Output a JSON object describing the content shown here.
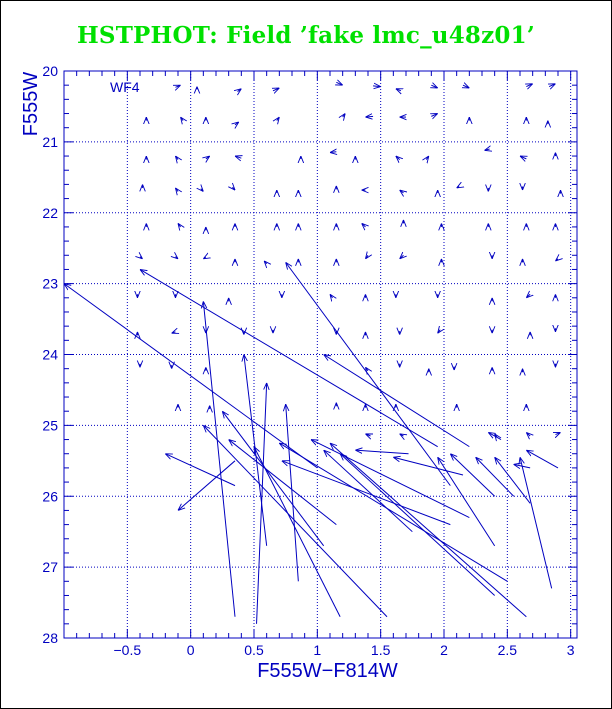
{
  "title": "HSTPHOT: Field ’fake lmc_u48z01’",
  "colors": {
    "title": "#00e000",
    "axes": "#0000c0"
  },
  "chart_data": {
    "type": "vector-field",
    "panel_label": "WF4",
    "xlabel": "F555W−F814W",
    "ylabel": "F555W",
    "xlim": [
      -1.0,
      3.05
    ],
    "ylim": [
      28,
      20
    ],
    "y_inverted": true,
    "grid": true,
    "x_ticks": [
      {
        "v": -0.5,
        "label": "−0.5"
      },
      {
        "v": 0,
        "label": "0"
      },
      {
        "v": 0.5,
        "label": "0.5"
      },
      {
        "v": 1,
        "label": "1"
      },
      {
        "v": 1.5,
        "label": "1.5"
      },
      {
        "v": 2,
        "label": "2"
      },
      {
        "v": 2.5,
        "label": "2.5"
      },
      {
        "v": 3,
        "label": "3"
      }
    ],
    "y_ticks": [
      {
        "v": 20,
        "label": "20"
      },
      {
        "v": 21,
        "label": "21"
      },
      {
        "v": 22,
        "label": "22"
      },
      {
        "v": 23,
        "label": "23"
      },
      {
        "v": 24,
        "label": "24"
      },
      {
        "v": 25,
        "label": "25"
      },
      {
        "v": 26,
        "label": "26"
      },
      {
        "v": 27,
        "label": "27"
      },
      {
        "v": 28,
        "label": "28"
      }
    ],
    "x_grid": [
      -0.5,
      0,
      0.5,
      1,
      1.5,
      2,
      2.5,
      3
    ],
    "y_grid": [
      21,
      22,
      23,
      24,
      25,
      26,
      27
    ],
    "vectors": [
      [
        -0.08,
        20.2,
        -0.12,
        20.23
      ],
      [
        0.05,
        20.22,
        0.05,
        20.26
      ],
      [
        0.4,
        20.25,
        0.37,
        20.29
      ],
      [
        0.7,
        20.24,
        0.65,
        20.28
      ],
      [
        1.2,
        20.2,
        1.15,
        20.16
      ],
      [
        1.5,
        20.22,
        1.44,
        20.21
      ],
      [
        1.62,
        20.25,
        1.66,
        20.28
      ],
      [
        1.95,
        20.24,
        1.9,
        20.2
      ],
      [
        2.2,
        20.24,
        2.15,
        20.2
      ],
      [
        2.7,
        20.18,
        2.65,
        20.22
      ],
      [
        2.88,
        20.18,
        2.83,
        20.22
      ],
      [
        -0.35,
        20.65,
        -0.35,
        20.7
      ],
      [
        -0.08,
        20.65,
        -0.06,
        20.7
      ],
      [
        0.12,
        20.65,
        0.12,
        20.7
      ],
      [
        0.38,
        20.72,
        0.35,
        20.76
      ],
      [
        0.7,
        20.65,
        0.68,
        20.7
      ],
      [
        1.22,
        20.6,
        1.2,
        20.65
      ],
      [
        1.38,
        20.65,
        1.44,
        20.64
      ],
      [
        1.65,
        20.65,
        1.7,
        20.65
      ],
      [
        1.95,
        20.6,
        1.9,
        20.64
      ],
      [
        2.2,
        20.65,
        2.2,
        20.7
      ],
      [
        2.65,
        20.65,
        2.65,
        20.7
      ],
      [
        2.82,
        20.7,
        2.82,
        20.75
      ],
      [
        -0.35,
        21.2,
        -0.35,
        21.25
      ],
      [
        -0.12,
        21.2,
        -0.1,
        21.25
      ],
      [
        0.15,
        21.2,
        0.12,
        21.24
      ],
      [
        0.35,
        21.2,
        0.4,
        21.23
      ],
      [
        0.87,
        21.2,
        0.87,
        21.24
      ],
      [
        1.1,
        21.15,
        1.15,
        21.14
      ],
      [
        1.3,
        21.2,
        1.3,
        21.25
      ],
      [
        1.62,
        21.2,
        1.65,
        21.25
      ],
      [
        1.88,
        21.2,
        1.86,
        21.25
      ],
      [
        2.32,
        21.12,
        2.36,
        21.1
      ],
      [
        2.6,
        21.2,
        2.65,
        21.24
      ],
      [
        2.88,
        21.15,
        2.88,
        21.2
      ],
      [
        -0.38,
        21.6,
        -0.38,
        21.65
      ],
      [
        -0.12,
        21.65,
        -0.1,
        21.7
      ],
      [
        0.1,
        21.7,
        0.08,
        21.66
      ],
      [
        0.35,
        21.68,
        0.33,
        21.64
      ],
      [
        0.68,
        21.68,
        0.68,
        21.72
      ],
      [
        0.85,
        21.68,
        0.85,
        21.72
      ],
      [
        1.15,
        21.62,
        1.15,
        21.67
      ],
      [
        1.35,
        21.68,
        1.38,
        21.68
      ],
      [
        1.65,
        21.68,
        1.68,
        21.72
      ],
      [
        1.95,
        21.68,
        1.95,
        21.72
      ],
      [
        2.1,
        21.65,
        2.12,
        21.63
      ],
      [
        2.35,
        21.7,
        2.35,
        21.65
      ],
      [
        2.62,
        21.68,
        2.62,
        21.63
      ],
      [
        2.92,
        21.68,
        2.92,
        21.73
      ],
      [
        -0.35,
        22.15,
        -0.35,
        22.2
      ],
      [
        -0.1,
        22.15,
        -0.08,
        22.2
      ],
      [
        0.12,
        22.2,
        0.12,
        22.25
      ],
      [
        0.35,
        22.15,
        0.35,
        22.2
      ],
      [
        0.68,
        22.15,
        0.68,
        22.2
      ],
      [
        0.85,
        22.15,
        0.85,
        22.2
      ],
      [
        1.15,
        22.15,
        1.15,
        22.2
      ],
      [
        1.35,
        22.15,
        1.38,
        22.2
      ],
      [
        1.68,
        22.1,
        1.68,
        22.15
      ],
      [
        1.98,
        22.15,
        1.98,
        22.2
      ],
      [
        2.35,
        22.15,
        2.35,
        22.2
      ],
      [
        2.65,
        22.15,
        2.65,
        22.2
      ],
      [
        2.88,
        22.15,
        2.88,
        22.2
      ],
      [
        -0.38,
        22.65,
        -0.4,
        22.62
      ],
      [
        -0.1,
        22.65,
        -0.12,
        22.62
      ],
      [
        0.1,
        22.65,
        0.12,
        22.63
      ],
      [
        0.35,
        22.65,
        0.35,
        22.7
      ],
      [
        0.58,
        22.68,
        0.6,
        22.72
      ],
      [
        0.85,
        22.65,
        0.85,
        22.7
      ],
      [
        1.15,
        22.65,
        1.15,
        22.7
      ],
      [
        1.38,
        22.65,
        1.4,
        22.6
      ],
      [
        1.65,
        22.65,
        1.68,
        22.6
      ],
      [
        1.98,
        22.65,
        1.98,
        22.7
      ],
      [
        2.38,
        22.65,
        2.38,
        22.6
      ],
      [
        2.62,
        22.65,
        2.62,
        22.7
      ],
      [
        2.88,
        22.68,
        2.9,
        22.65
      ],
      [
        -0.42,
        23.2,
        -0.42,
        23.15
      ],
      [
        -0.12,
        23.2,
        -0.12,
        23.15
      ],
      [
        0.3,
        23.2,
        0.3,
        23.25
      ],
      [
        0.72,
        23.2,
        0.72,
        23.15
      ],
      [
        1.1,
        23.15,
        1.12,
        23.2
      ],
      [
        1.38,
        23.15,
        1.38,
        23.2
      ],
      [
        1.62,
        23.2,
        1.62,
        23.15
      ],
      [
        1.95,
        23.2,
        1.95,
        23.15
      ],
      [
        2.38,
        23.2,
        2.38,
        23.25
      ],
      [
        2.65,
        23.2,
        2.68,
        23.15
      ],
      [
        2.88,
        23.15,
        2.88,
        23.2
      ],
      [
        -0.42,
        23.68,
        -0.42,
        23.73
      ],
      [
        -0.15,
        23.7,
        -0.12,
        23.68
      ],
      [
        0.12,
        23.7,
        0.12,
        23.65
      ],
      [
        0.42,
        23.72,
        0.42,
        23.68
      ],
      [
        0.65,
        23.7,
        0.65,
        23.65
      ],
      [
        1.15,
        23.72,
        1.15,
        23.67
      ],
      [
        1.38,
        23.68,
        1.38,
        23.73
      ],
      [
        1.65,
        23.72,
        1.65,
        23.67
      ],
      [
        1.95,
        23.7,
        1.97,
        23.65
      ],
      [
        2.38,
        23.7,
        2.38,
        23.65
      ],
      [
        2.68,
        23.68,
        2.68,
        23.73
      ],
      [
        2.88,
        23.68,
        2.88,
        23.63
      ],
      [
        -0.4,
        24.18,
        -0.4,
        24.13
      ],
      [
        -0.15,
        24.2,
        -0.15,
        24.15
      ],
      [
        0.12,
        24.18,
        0.12,
        24.23
      ],
      [
        1.38,
        24.18,
        1.4,
        24.23
      ],
      [
        1.65,
        24.18,
        1.65,
        24.13
      ],
      [
        1.88,
        24.2,
        1.88,
        24.25
      ],
      [
        2.08,
        24.22,
        2.08,
        24.17
      ],
      [
        2.38,
        24.18,
        2.38,
        24.23
      ],
      [
        2.62,
        24.2,
        2.62,
        24.25
      ],
      [
        2.88,
        24.18,
        2.88,
        24.13
      ],
      [
        -0.1,
        24.7,
        -0.1,
        24.75
      ],
      [
        0.15,
        24.72,
        0.15,
        24.77
      ],
      [
        1.15,
        24.68,
        1.15,
        24.73
      ],
      [
        1.38,
        24.7,
        1.38,
        24.75
      ],
      [
        1.62,
        24.7,
        1.62,
        24.75
      ],
      [
        2.1,
        24.7,
        2.1,
        24.75
      ],
      [
        2.65,
        24.7,
        2.65,
        24.75
      ],
      [
        1.38,
        25.12,
        1.42,
        25.15
      ],
      [
        1.65,
        25.12,
        1.68,
        25.15
      ],
      [
        2.4,
        25.12,
        2.42,
        25.17
      ],
      [
        2.65,
        25.1,
        2.68,
        25.15
      ],
      [
        2.92,
        25.1,
        2.88,
        25.13
      ],
      [
        -1.0,
        23.0,
        1.0,
        25.6
      ],
      [
        -0.4,
        22.8,
        1.95,
        25.3
      ],
      [
        0.75,
        22.7,
        2.05,
        25.85
      ],
      [
        1.05,
        24.0,
        2.2,
        25.3
      ],
      [
        0.1,
        23.25,
        0.35,
        27.7
      ],
      [
        0.42,
        24.0,
        0.6,
        26.7
      ],
      [
        0.6,
        24.4,
        0.52,
        27.8
      ],
      [
        0.75,
        24.7,
        0.85,
        27.2
      ],
      [
        0.1,
        25.0,
        1.55,
        27.7
      ],
      [
        0.25,
        24.8,
        1.05,
        26.7
      ],
      [
        -0.2,
        25.4,
        0.35,
        25.85
      ],
      [
        -0.1,
        26.2,
        0.35,
        25.5
      ],
      [
        0.3,
        25.2,
        1.15,
        26.4
      ],
      [
        0.5,
        25.3,
        1.18,
        27.7
      ],
      [
        0.7,
        25.25,
        2.5,
        27.2
      ],
      [
        0.72,
        25.5,
        2.05,
        26.4
      ],
      [
        0.95,
        25.2,
        2.2,
        26.3
      ],
      [
        1.05,
        25.35,
        1.75,
        26.5
      ],
      [
        1.1,
        25.25,
        2.65,
        27.7
      ],
      [
        1.18,
        25.4,
        2.4,
        27.4
      ],
      [
        1.3,
        25.35,
        1.72,
        25.4
      ],
      [
        1.6,
        25.45,
        2.15,
        25.7
      ],
      [
        1.95,
        25.45,
        2.4,
        26.7
      ],
      [
        2.05,
        25.4,
        2.4,
        26.0
      ],
      [
        2.25,
        25.45,
        2.55,
        26.0
      ],
      [
        2.4,
        25.45,
        2.68,
        26.1
      ],
      [
        2.6,
        25.45,
        2.85,
        27.3
      ],
      [
        2.55,
        25.55,
        2.68,
        25.6
      ],
      [
        2.65,
        25.35,
        2.9,
        25.6
      ],
      [
        2.35,
        25.1,
        2.45,
        25.2
      ]
    ]
  }
}
